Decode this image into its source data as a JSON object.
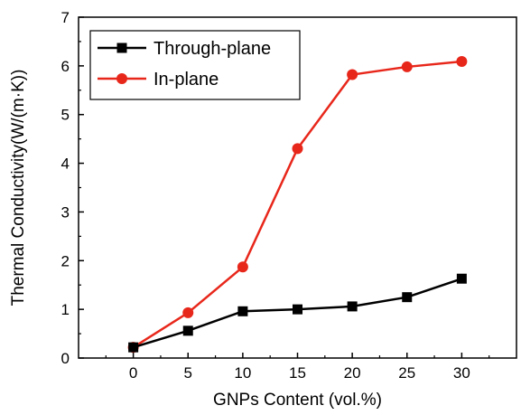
{
  "chart_data": {
    "type": "line",
    "title": "",
    "xlabel": "GNPs Content (vol.%)",
    "ylabel": "Thermal Conductivity(W/(m·K))",
    "x": [
      0,
      5,
      10,
      15,
      20,
      25,
      30
    ],
    "xlim": [
      -5,
      35
    ],
    "ylim": [
      0,
      7
    ],
    "x_ticks": [
      0,
      5,
      10,
      15,
      20,
      25,
      30
    ],
    "y_ticks": [
      0,
      1,
      2,
      3,
      4,
      5,
      6,
      7
    ],
    "grid": false,
    "legend_position": "top-left",
    "series": [
      {
        "name": "Through-plane",
        "color": "#000000",
        "marker": "square",
        "values": [
          0.22,
          0.56,
          0.96,
          1.0,
          1.06,
          1.25,
          1.63
        ]
      },
      {
        "name": "In-plane",
        "color": "#e8271b",
        "marker": "circle",
        "values": [
          0.22,
          0.93,
          1.87,
          4.3,
          5.82,
          5.98,
          6.09
        ]
      }
    ]
  }
}
